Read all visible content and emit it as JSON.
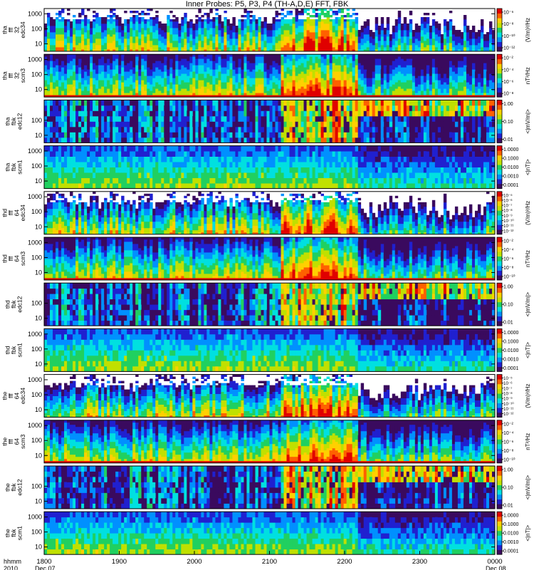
{
  "title": "Inner Probes: P5, P3, P4 (TH-A,D,E) FFT, FBK",
  "time_axis": {
    "label_lines": [
      "hhmm",
      "2010"
    ],
    "ticks": [
      {
        "time": "1800",
        "date": "Dec 07"
      },
      {
        "time": "1900",
        "date": ""
      },
      {
        "time": "2000",
        "date": ""
      },
      {
        "time": "2100",
        "date": ""
      },
      {
        "time": "2200",
        "date": ""
      },
      {
        "time": "2300",
        "date": ""
      },
      {
        "time": "0000",
        "date": "Dec 08"
      }
    ]
  },
  "colorbar_palette": [
    "#ffffff",
    "#3a0a5e",
    "#2020d0",
    "#0090ff",
    "#00e0e0",
    "#20d060",
    "#c0e000",
    "#ffd000",
    "#ff6000",
    "#e00000"
  ],
  "chart_data": [
    {
      "type": "heatmap",
      "probe": "tha",
      "ylabel_lines": [
        "tha",
        "fff",
        "32",
        "edc34"
      ],
      "yticks": [
        "1000",
        "100",
        "10"
      ],
      "ylog": true,
      "cbar_ticks": [
        "10⁻⁶",
        "10⁻⁸",
        "10⁻¹⁰",
        "10⁻¹²"
      ],
      "cbar_label": "(V/m)²/Hz"
    },
    {
      "type": "heatmap",
      "probe": "tha",
      "ylabel_lines": [
        "tha",
        "fff",
        "32",
        "scm3"
      ],
      "yticks": [
        "1000",
        "100",
        "10"
      ],
      "ylog": true,
      "cbar_ticks": [
        "10⁻²",
        "10⁻⁴",
        "10⁻⁶",
        "10⁻⁸"
      ],
      "cbar_label": "nT²/Hz"
    },
    {
      "type": "heatmap",
      "probe": "tha",
      "ylabel_lines": [
        "tha",
        "fbk",
        "edc12"
      ],
      "yticks": [
        "100",
        "10"
      ],
      "ylog": true,
      "cbar_ticks": [
        "1.00",
        "0.10",
        "0.01"
      ],
      "cbar_label": "<|mV/m|>"
    },
    {
      "type": "heatmap",
      "probe": "tha",
      "ylabel_lines": [
        "tha",
        "fbk",
        "scm1"
      ],
      "yticks": [
        "1000",
        "100",
        "10"
      ],
      "ylog": true,
      "cbar_ticks": [
        "1.0000",
        "0.1000",
        "0.0100",
        "0.0010",
        "0.0001"
      ],
      "cbar_label": "<|nT|>"
    },
    {
      "type": "heatmap",
      "probe": "thd",
      "ylabel_lines": [
        "thd",
        "fff",
        "64",
        "edc34"
      ],
      "yticks": [
        "1000",
        "100",
        "10"
      ],
      "ylog": true,
      "cbar_ticks": [
        "10⁻⁵",
        "10⁻⁶",
        "10⁻⁷",
        "10⁻⁸",
        "10⁻⁹",
        "10⁻¹⁰",
        "10⁻¹¹",
        "10⁻¹²"
      ],
      "cbar_label": "(V/m)²/Hz"
    },
    {
      "type": "heatmap",
      "probe": "thd",
      "ylabel_lines": [
        "thd",
        "fff",
        "64",
        "scm3"
      ],
      "yticks": [
        "1000",
        "100",
        "10"
      ],
      "ylog": true,
      "cbar_ticks": [
        "10⁻²",
        "10⁻⁴",
        "10⁻⁶",
        "10⁻⁸",
        "10⁻¹⁰"
      ],
      "cbar_label": "nT²/Hz"
    },
    {
      "type": "heatmap",
      "probe": "thd",
      "ylabel_lines": [
        "thd",
        "fbk",
        "edc12"
      ],
      "yticks": [
        "100",
        "10"
      ],
      "ylog": true,
      "cbar_ticks": [
        "1.00",
        "0.10",
        "0.01"
      ],
      "cbar_label": "<|mV/m|>"
    },
    {
      "type": "heatmap",
      "probe": "thd",
      "ylabel_lines": [
        "thd",
        "fbk",
        "scm1"
      ],
      "yticks": [
        "1000",
        "100",
        "10"
      ],
      "ylog": true,
      "cbar_ticks": [
        "1.0000",
        "0.1000",
        "0.0100",
        "0.0010",
        "0.0001"
      ],
      "cbar_label": "<|nT|>"
    },
    {
      "type": "heatmap",
      "probe": "the",
      "ylabel_lines": [
        "the",
        "fff",
        "64",
        "edc34"
      ],
      "yticks": [
        "1000",
        "100",
        "10"
      ],
      "ylog": true,
      "cbar_ticks": [
        "10⁻⁵",
        "10⁻⁶",
        "10⁻⁷",
        "10⁻⁸",
        "10⁻⁹",
        "10⁻¹⁰",
        "10⁻¹¹",
        "10⁻¹²"
      ],
      "cbar_label": "(V/m)²/Hz"
    },
    {
      "type": "heatmap",
      "probe": "the",
      "ylabel_lines": [
        "the",
        "fff",
        "64",
        "scm3"
      ],
      "yticks": [
        "1000",
        "100",
        "10"
      ],
      "ylog": true,
      "cbar_ticks": [
        "10⁻²",
        "10⁻⁴",
        "10⁻⁶",
        "10⁻⁸",
        "10⁻¹⁰"
      ],
      "cbar_label": "nT²/Hz"
    },
    {
      "type": "heatmap",
      "probe": "the",
      "ylabel_lines": [
        "the",
        "fbk",
        "edc12"
      ],
      "yticks": [
        "100",
        "10"
      ],
      "ylog": true,
      "cbar_ticks": [
        "1.00",
        "0.10",
        "0.01"
      ],
      "cbar_label": "<|mV/m|>"
    },
    {
      "type": "heatmap",
      "probe": "the",
      "ylabel_lines": [
        "the",
        "fbk",
        "scm1"
      ],
      "yticks": [
        "1000",
        "100",
        "10"
      ],
      "ylog": true,
      "cbar_ticks": [
        "1.0000",
        "0.1000",
        "0.0100",
        "0.0010",
        "0.0001"
      ],
      "cbar_label": "<|nT|>"
    }
  ]
}
